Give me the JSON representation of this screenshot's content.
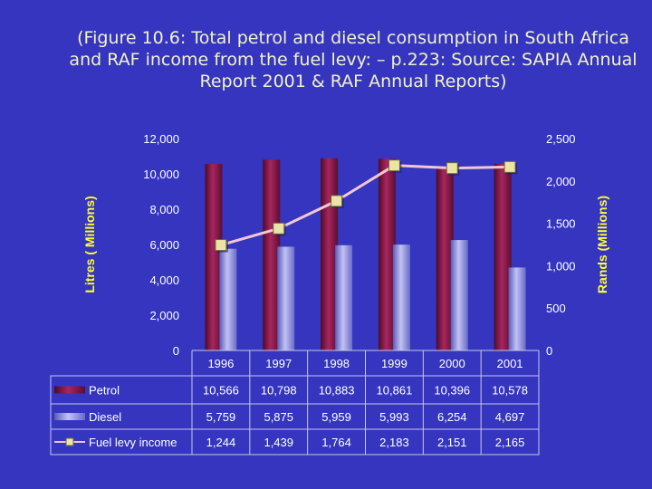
{
  "title_lines": [
    "(Figure 10.6: Total petrol and diesel consumption in South Africa",
    "and RAF income from the fuel levy: – p.223: Source: SAPIA Annual",
    "Report 2001 & RAF Annual Reports)"
  ],
  "chart_data": {
    "type": "bar",
    "categories": [
      "1996",
      "1997",
      "1998",
      "1999",
      "2000",
      "2001"
    ],
    "series": [
      {
        "name": "Petrol",
        "kind": "bar",
        "axis": "left",
        "color": "#8c1c4e",
        "values": [
          10566,
          10798,
          10883,
          10861,
          10396,
          10578
        ]
      },
      {
        "name": "Diesel",
        "kind": "bar",
        "axis": "left",
        "color": "#9a9ae8",
        "values": [
          5759,
          5875,
          5959,
          5993,
          6254,
          4697
        ]
      },
      {
        "name": "Fuel levy income",
        "kind": "line",
        "axis": "right",
        "color": "#f3c7d2",
        "marker_color": "#ece3a6",
        "values": [
          1244,
          1439,
          1764,
          2183,
          2151,
          2165
        ]
      }
    ],
    "ylabel": "Litres ( Millions)",
    "ylabel_right": "Rands (Millions)",
    "ylim": [
      0,
      12000
    ],
    "ylim_right": [
      0,
      2500
    ],
    "yticks": [
      "0",
      "2,000",
      "4,000",
      "6,000",
      "8,000",
      "10,000",
      "12,000"
    ],
    "yticks_right": [
      "0",
      "500",
      "1,000",
      "1,500",
      "2,000",
      "2,500"
    ],
    "table": {
      "rows": [
        {
          "label": "Petrol",
          "cells": [
            "10,566",
            "10,798",
            "10,883",
            "10,861",
            "10,396",
            "10,578"
          ]
        },
        {
          "label": "Diesel",
          "cells": [
            "5,759",
            "5,875",
            "5,959",
            "5,993",
            "6,254",
            "4,697"
          ]
        },
        {
          "label": "Fuel levy income",
          "cells": [
            "1,244",
            "1,439",
            "1,764",
            "2,183",
            "2,151",
            "2,165"
          ]
        }
      ]
    }
  }
}
